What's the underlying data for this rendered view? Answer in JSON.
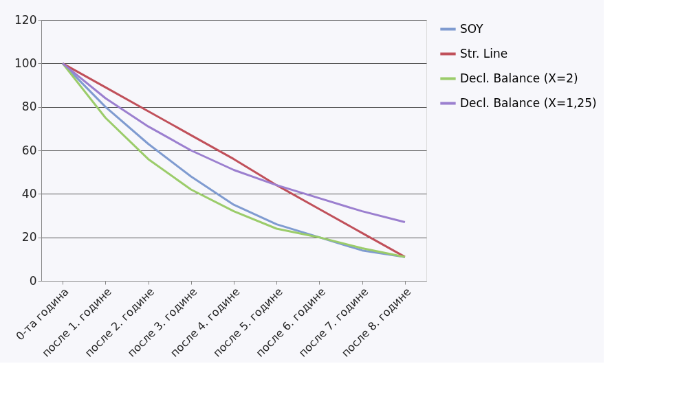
{
  "chart_data": {
    "type": "line",
    "categories": [
      "0-та година",
      "после 1. године",
      "после 2. године",
      "после 3. године",
      "после 4. године",
      "после 5. године",
      "после 6. године",
      "после 7. године",
      "после 8. године"
    ],
    "series": [
      {
        "name": "SOY",
        "color": "#7f9bd0",
        "values": [
          100,
          80,
          63,
          48,
          35,
          26,
          20,
          14,
          11
        ]
      },
      {
        "name": "Str. Line",
        "color": "#c0505a",
        "values": [
          100,
          89,
          78,
          67,
          56,
          44,
          33,
          22,
          11
        ]
      },
      {
        "name": "Decl. Balance (X=2)",
        "color": "#9bcc6a",
        "values": [
          100,
          75,
          56,
          42,
          32,
          24,
          20,
          15,
          11
        ]
      },
      {
        "name": "Decl. Balance (X=1,25)",
        "color": "#9b7fcf",
        "values": [
          100,
          84,
          71,
          60,
          51,
          44,
          38,
          32,
          27
        ]
      }
    ],
    "ylim": [
      0,
      120
    ],
    "yticks": [
      0,
      20,
      40,
      60,
      80,
      100,
      120
    ],
    "grid": "y",
    "legend": "right",
    "marker": "none",
    "line_style": "solid"
  }
}
